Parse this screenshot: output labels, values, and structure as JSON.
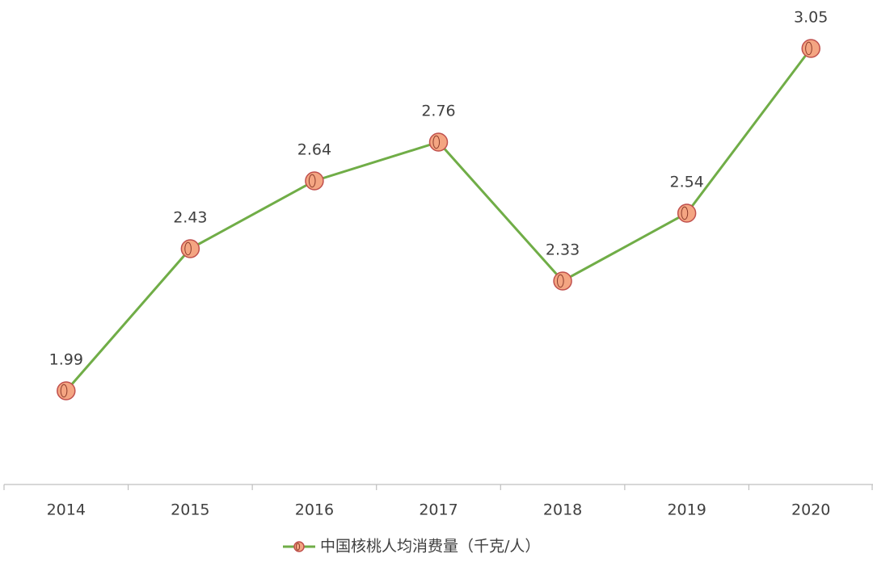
{
  "chart_data": {
    "type": "line",
    "categories": [
      "2014",
      "2015",
      "2016",
      "2017",
      "2018",
      "2019",
      "2020"
    ],
    "series": [
      {
        "name": "中国核桃人均消费量（千克/人）",
        "color": "#70ad47",
        "marker_color": "#f4a582",
        "values": [
          1.99,
          2.43,
          2.64,
          2.76,
          2.33,
          2.54,
          3.05
        ]
      }
    ],
    "data_labels": true,
    "legend": "bottom"
  }
}
